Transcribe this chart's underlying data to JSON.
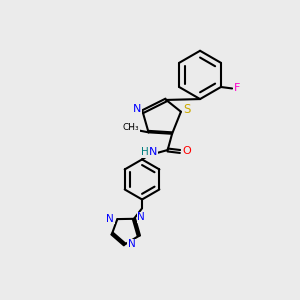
{
  "background_color": "#ebebeb",
  "bond_color": "#000000",
  "atom_colors": {
    "N": "#0000ff",
    "S": "#ccaa00",
    "O": "#ff0000",
    "F": "#ff00cc",
    "H": "#008080",
    "C": "#000000"
  },
  "figsize": [
    3.0,
    3.0
  ],
  "dpi": 100,
  "lw": 1.5,
  "fs": 7.5,
  "off": 0.05
}
